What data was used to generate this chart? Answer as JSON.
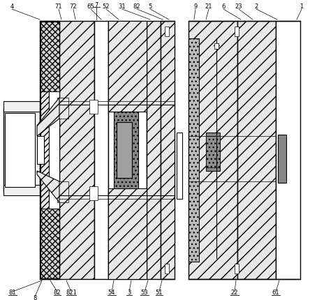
{
  "bg": "#ffffff",
  "lc": "#000000",
  "fs": 6.0,
  "lw_main": 0.8,
  "lw_thin": 0.5,
  "gray_hatch": "#e8e8e8",
  "gray_dark": "#888888",
  "gray_medium": "#bbbbbb"
}
